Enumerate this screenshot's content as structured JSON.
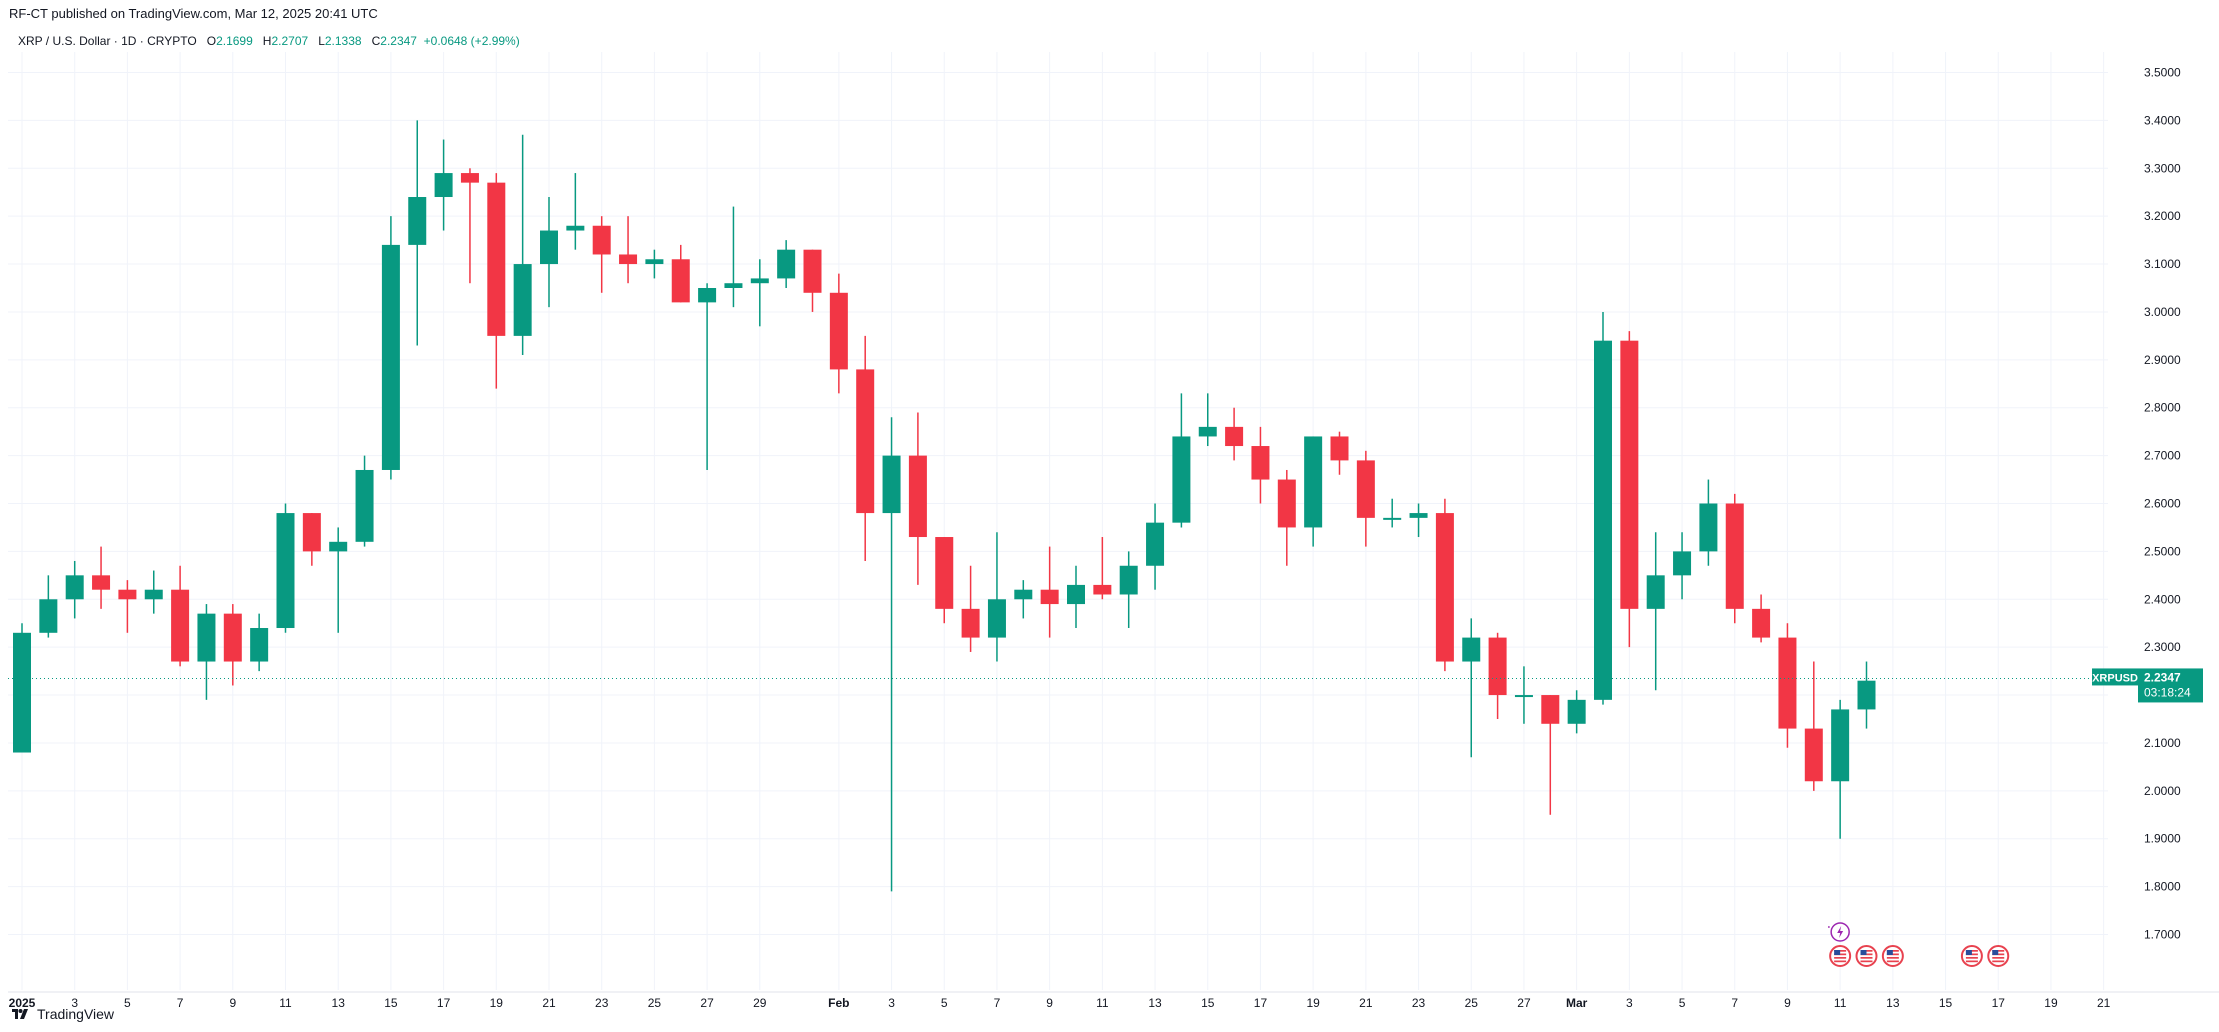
{
  "header": {
    "published": "RF-CT published on TradingView.com, Mar 12, 2025 20:41 UTC",
    "symbol": "XRP / U.S. Dollar · 1D · CRYPTO",
    "o_label": "O",
    "o_value": "2.1699",
    "h_label": "H",
    "h_value": "2.2707",
    "l_label": "L",
    "l_value": "2.1338",
    "c_label": "C",
    "c_value": "2.2347",
    "change": "+0.0648 (+2.99%)"
  },
  "footer": {
    "brand": "TradingView"
  },
  "price_label": {
    "symbol": "XRPUSD",
    "price": "2.2347",
    "countdown": "03:18:24"
  },
  "colors": {
    "up": "#089981",
    "down": "#f23645",
    "grid": "#f0f3fa",
    "text": "#131722",
    "events": "#e8424f",
    "spark": "#9c27b0"
  },
  "chart_data": {
    "type": "candlestick",
    "interval": "1D",
    "ylim": [
      1.64,
      3.56
    ],
    "grid": true,
    "y_ticks": [
      "1.7000",
      "1.8000",
      "1.9000",
      "2.0000",
      "2.1000",
      "2.2000",
      "2.3000",
      "2.4000",
      "2.5000",
      "2.6000",
      "2.7000",
      "2.8000",
      "2.9000",
      "3.0000",
      "3.1000",
      "3.2000",
      "3.3000",
      "3.4000",
      "3.5000"
    ],
    "x_tick_labels": [
      {
        "i": 0,
        "label": "2025"
      },
      {
        "i": 2,
        "label": "3"
      },
      {
        "i": 4,
        "label": "5"
      },
      {
        "i": 6,
        "label": "7"
      },
      {
        "i": 8,
        "label": "9"
      },
      {
        "i": 10,
        "label": "11"
      },
      {
        "i": 12,
        "label": "13"
      },
      {
        "i": 14,
        "label": "15"
      },
      {
        "i": 16,
        "label": "17"
      },
      {
        "i": 18,
        "label": "19"
      },
      {
        "i": 20,
        "label": "21"
      },
      {
        "i": 22,
        "label": "23"
      },
      {
        "i": 24,
        "label": "25"
      },
      {
        "i": 26,
        "label": "27"
      },
      {
        "i": 28,
        "label": "29"
      },
      {
        "i": 31,
        "label": "Feb"
      },
      {
        "i": 33,
        "label": "3"
      },
      {
        "i": 35,
        "label": "5"
      },
      {
        "i": 37,
        "label": "7"
      },
      {
        "i": 39,
        "label": "9"
      },
      {
        "i": 41,
        "label": "11"
      },
      {
        "i": 43,
        "label": "13"
      },
      {
        "i": 45,
        "label": "15"
      },
      {
        "i": 47,
        "label": "17"
      },
      {
        "i": 49,
        "label": "19"
      },
      {
        "i": 51,
        "label": "21"
      },
      {
        "i": 53,
        "label": "23"
      },
      {
        "i": 55,
        "label": "25"
      },
      {
        "i": 57,
        "label": "27"
      },
      {
        "i": 59,
        "label": "Mar"
      },
      {
        "i": 61,
        "label": "3"
      },
      {
        "i": 63,
        "label": "5"
      },
      {
        "i": 65,
        "label": "7"
      },
      {
        "i": 67,
        "label": "9"
      },
      {
        "i": 69,
        "label": "11"
      },
      {
        "i": 71,
        "label": "13"
      },
      {
        "i": 73,
        "label": "15"
      },
      {
        "i": 75,
        "label": "17"
      },
      {
        "i": 77,
        "label": "19"
      },
      {
        "i": 79,
        "label": "21"
      }
    ],
    "candles": [
      {
        "o": 2.08,
        "h": 2.35,
        "l": 2.08,
        "c": 2.33
      },
      {
        "o": 2.33,
        "h": 2.45,
        "l": 2.32,
        "c": 2.4
      },
      {
        "o": 2.4,
        "h": 2.48,
        "l": 2.36,
        "c": 2.45
      },
      {
        "o": 2.45,
        "h": 2.51,
        "l": 2.38,
        "c": 2.42
      },
      {
        "o": 2.42,
        "h": 2.44,
        "l": 2.33,
        "c": 2.4
      },
      {
        "o": 2.4,
        "h": 2.46,
        "l": 2.37,
        "c": 2.42
      },
      {
        "o": 2.42,
        "h": 2.47,
        "l": 2.26,
        "c": 2.27
      },
      {
        "o": 2.27,
        "h": 2.39,
        "l": 2.19,
        "c": 2.37
      },
      {
        "o": 2.37,
        "h": 2.39,
        "l": 2.22,
        "c": 2.27
      },
      {
        "o": 2.27,
        "h": 2.37,
        "l": 2.25,
        "c": 2.34
      },
      {
        "o": 2.34,
        "h": 2.6,
        "l": 2.33,
        "c": 2.58
      },
      {
        "o": 2.58,
        "h": 2.58,
        "l": 2.47,
        "c": 2.5
      },
      {
        "o": 2.5,
        "h": 2.55,
        "l": 2.33,
        "c": 2.52
      },
      {
        "o": 2.52,
        "h": 2.7,
        "l": 2.51,
        "c": 2.67
      },
      {
        "o": 2.67,
        "h": 3.2,
        "l": 2.65,
        "c": 3.14
      },
      {
        "o": 3.14,
        "h": 3.4,
        "l": 2.93,
        "c": 3.24
      },
      {
        "o": 3.24,
        "h": 3.36,
        "l": 3.17,
        "c": 3.29
      },
      {
        "o": 3.29,
        "h": 3.3,
        "l": 3.06,
        "c": 3.27
      },
      {
        "o": 3.27,
        "h": 3.29,
        "l": 2.84,
        "c": 2.95
      },
      {
        "o": 2.95,
        "h": 3.37,
        "l": 2.91,
        "c": 3.1
      },
      {
        "o": 3.1,
        "h": 3.24,
        "l": 3.01,
        "c": 3.17
      },
      {
        "o": 3.17,
        "h": 3.29,
        "l": 3.13,
        "c": 3.18
      },
      {
        "o": 3.18,
        "h": 3.2,
        "l": 3.04,
        "c": 3.12
      },
      {
        "o": 3.12,
        "h": 3.2,
        "l": 3.06,
        "c": 3.1
      },
      {
        "o": 3.1,
        "h": 3.13,
        "l": 3.07,
        "c": 3.11
      },
      {
        "o": 3.11,
        "h": 3.14,
        "l": 3.02,
        "c": 3.02
      },
      {
        "o": 3.02,
        "h": 3.06,
        "l": 2.67,
        "c": 3.05
      },
      {
        "o": 3.05,
        "h": 3.22,
        "l": 3.01,
        "c": 3.06
      },
      {
        "o": 3.06,
        "h": 3.11,
        "l": 2.97,
        "c": 3.07
      },
      {
        "o": 3.07,
        "h": 3.15,
        "l": 3.05,
        "c": 3.13
      },
      {
        "o": 3.13,
        "h": 3.13,
        "l": 3.0,
        "c": 3.04
      },
      {
        "o": 3.04,
        "h": 3.08,
        "l": 2.83,
        "c": 2.88
      },
      {
        "o": 2.88,
        "h": 2.95,
        "l": 2.48,
        "c": 2.58
      },
      {
        "o": 2.58,
        "h": 2.78,
        "l": 1.79,
        "c": 2.7
      },
      {
        "o": 2.7,
        "h": 2.79,
        "l": 2.43,
        "c": 2.53
      },
      {
        "o": 2.53,
        "h": 2.53,
        "l": 2.35,
        "c": 2.38
      },
      {
        "o": 2.38,
        "h": 2.47,
        "l": 2.29,
        "c": 2.32
      },
      {
        "o": 2.32,
        "h": 2.54,
        "l": 2.27,
        "c": 2.4
      },
      {
        "o": 2.4,
        "h": 2.44,
        "l": 2.36,
        "c": 2.42
      },
      {
        "o": 2.42,
        "h": 2.51,
        "l": 2.32,
        "c": 2.39
      },
      {
        "o": 2.39,
        "h": 2.47,
        "l": 2.34,
        "c": 2.43
      },
      {
        "o": 2.43,
        "h": 2.53,
        "l": 2.4,
        "c": 2.41
      },
      {
        "o": 2.41,
        "h": 2.5,
        "l": 2.34,
        "c": 2.47
      },
      {
        "o": 2.47,
        "h": 2.6,
        "l": 2.42,
        "c": 2.56
      },
      {
        "o": 2.56,
        "h": 2.83,
        "l": 2.55,
        "c": 2.74
      },
      {
        "o": 2.74,
        "h": 2.83,
        "l": 2.72,
        "c": 2.76
      },
      {
        "o": 2.76,
        "h": 2.8,
        "l": 2.69,
        "c": 2.72
      },
      {
        "o": 2.72,
        "h": 2.76,
        "l": 2.6,
        "c": 2.65
      },
      {
        "o": 2.65,
        "h": 2.67,
        "l": 2.47,
        "c": 2.55
      },
      {
        "o": 2.55,
        "h": 2.74,
        "l": 2.51,
        "c": 2.74
      },
      {
        "o": 2.74,
        "h": 2.75,
        "l": 2.66,
        "c": 2.69
      },
      {
        "o": 2.69,
        "h": 2.71,
        "l": 2.51,
        "c": 2.57
      },
      {
        "o": 2.57,
        "h": 2.61,
        "l": 2.55,
        "c": 2.57
      },
      {
        "o": 2.57,
        "h": 2.6,
        "l": 2.53,
        "c": 2.58
      },
      {
        "o": 2.58,
        "h": 2.61,
        "l": 2.25,
        "c": 2.27
      },
      {
        "o": 2.27,
        "h": 2.36,
        "l": 2.07,
        "c": 2.32
      },
      {
        "o": 2.32,
        "h": 2.33,
        "l": 2.15,
        "c": 2.2
      },
      {
        "o": 2.2,
        "h": 2.26,
        "l": 2.14,
        "c": 2.2
      },
      {
        "o": 2.2,
        "h": 2.2,
        "l": 1.95,
        "c": 2.14
      },
      {
        "o": 2.14,
        "h": 2.21,
        "l": 2.12,
        "c": 2.19
      },
      {
        "o": 2.19,
        "h": 3.0,
        "l": 2.18,
        "c": 2.94
      },
      {
        "o": 2.94,
        "h": 2.96,
        "l": 2.3,
        "c": 2.38
      },
      {
        "o": 2.38,
        "h": 2.54,
        "l": 2.21,
        "c": 2.45
      },
      {
        "o": 2.45,
        "h": 2.54,
        "l": 2.4,
        "c": 2.5
      },
      {
        "o": 2.5,
        "h": 2.65,
        "l": 2.47,
        "c": 2.6
      },
      {
        "o": 2.6,
        "h": 2.62,
        "l": 2.35,
        "c": 2.38
      },
      {
        "o": 2.38,
        "h": 2.41,
        "l": 2.31,
        "c": 2.32
      },
      {
        "o": 2.32,
        "h": 2.35,
        "l": 2.09,
        "c": 2.13
      },
      {
        "o": 2.13,
        "h": 2.27,
        "l": 2.0,
        "c": 2.02
      },
      {
        "o": 2.02,
        "h": 2.19,
        "l": 1.9,
        "c": 2.17
      },
      {
        "o": 2.17,
        "h": 2.27,
        "l": 2.13,
        "c": 2.23
      }
    ],
    "last_price": 2.2347,
    "event_markers": [
      69,
      70,
      71,
      74,
      75
    ],
    "spark_marker": 69
  }
}
